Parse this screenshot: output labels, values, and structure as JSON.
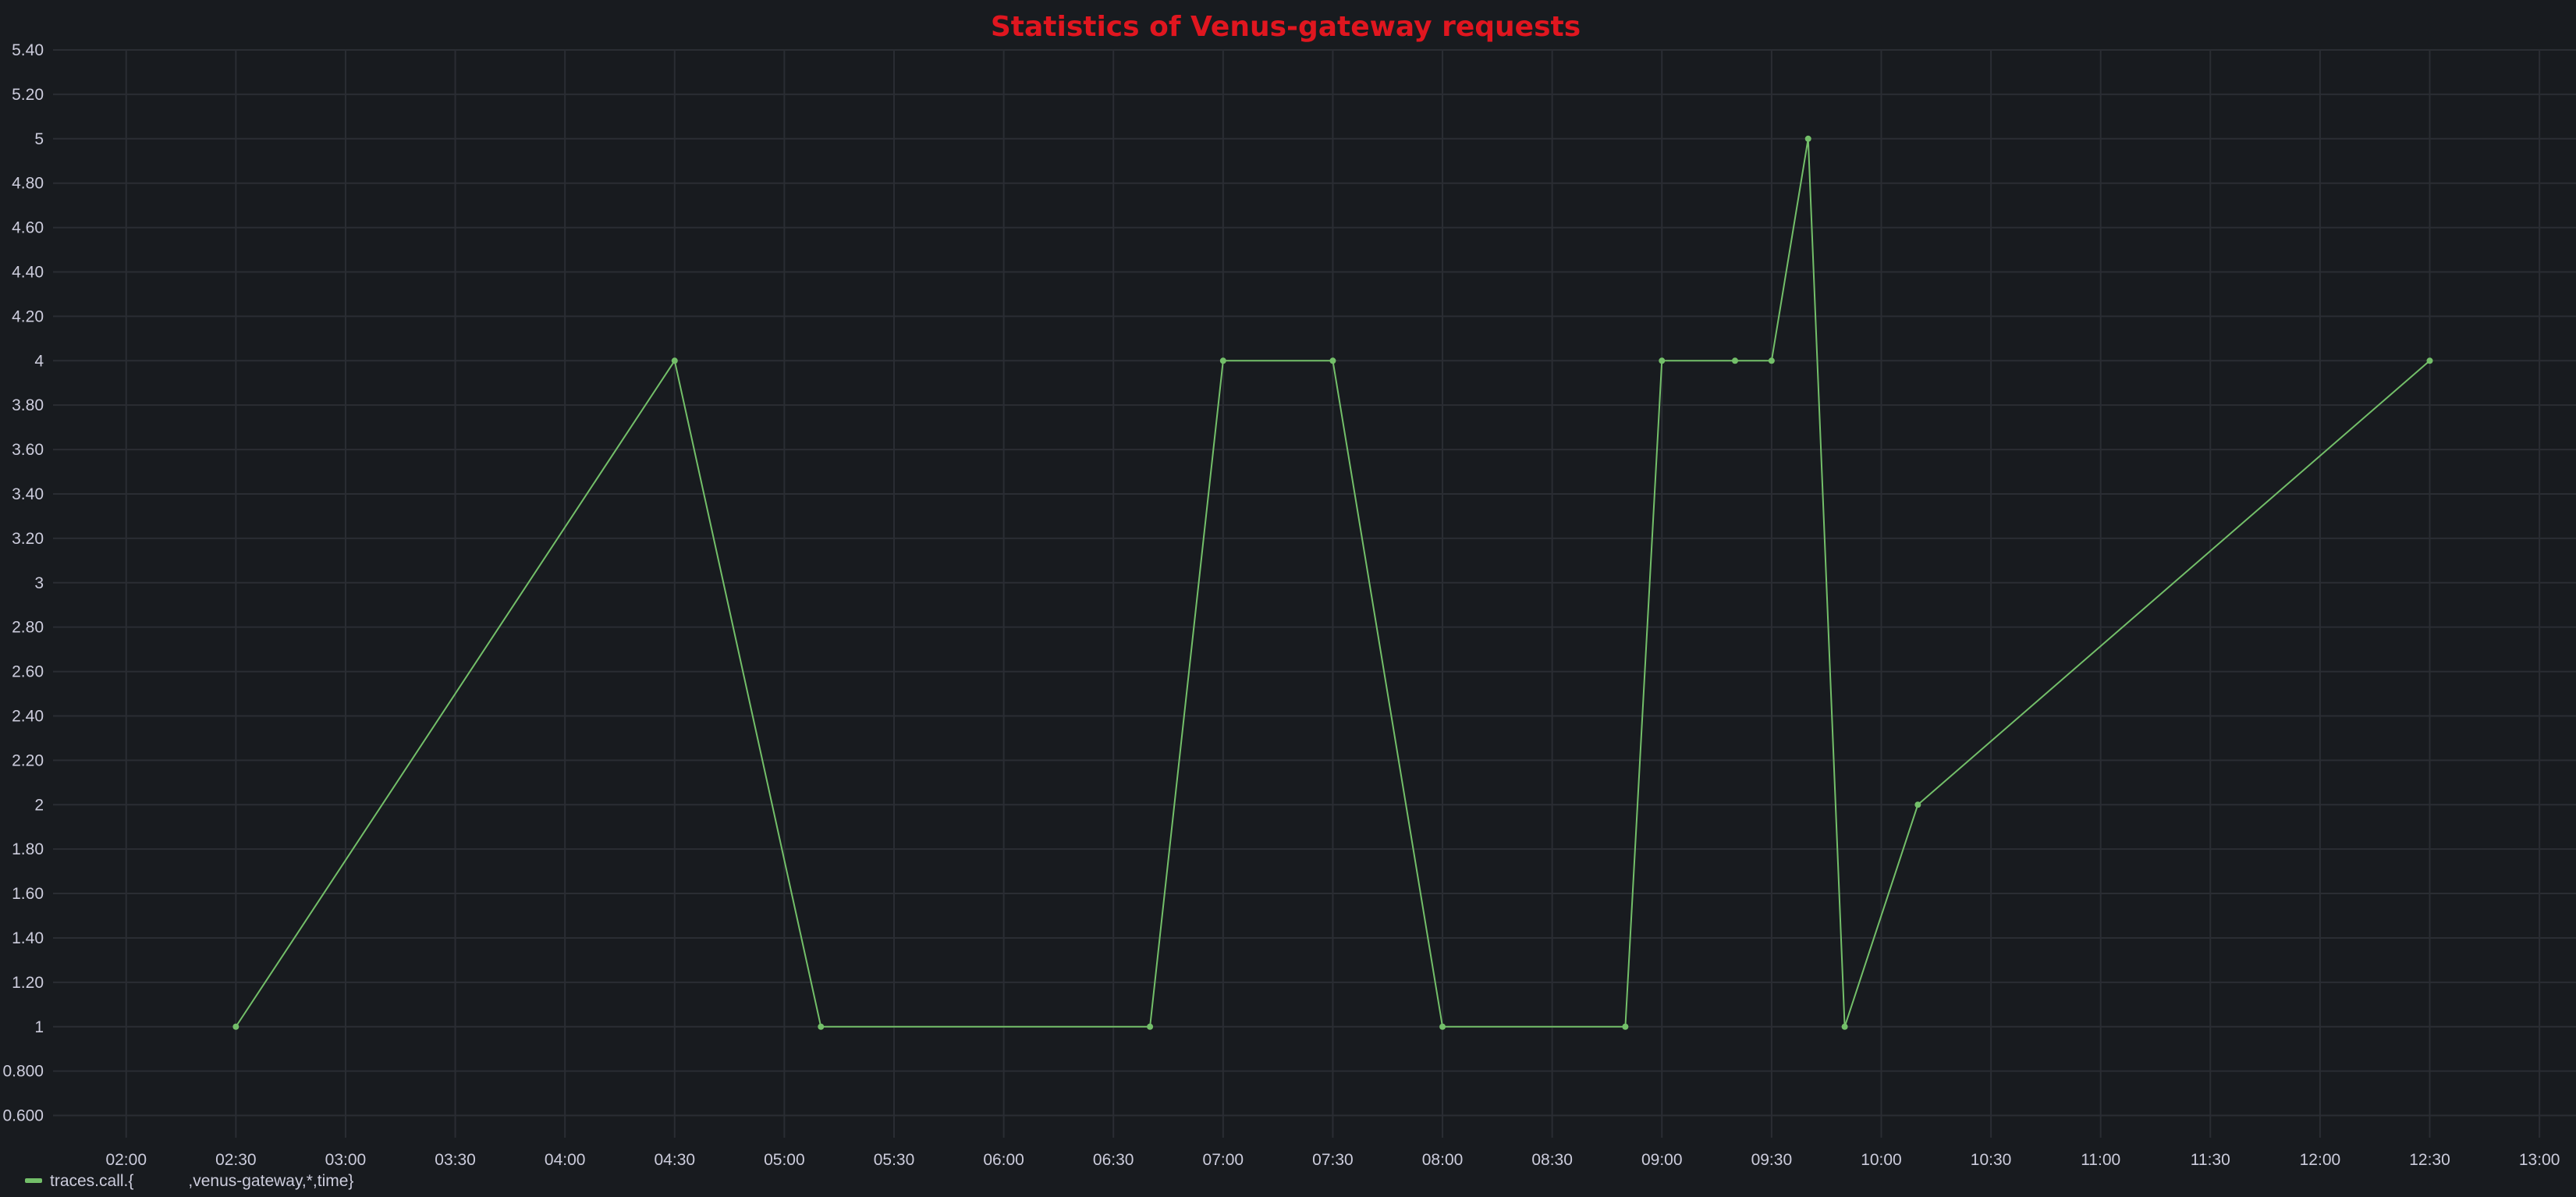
{
  "chart_data": {
    "type": "line",
    "title": "Statistics of Venus-gateway requests",
    "xlabel": "",
    "ylabel": "",
    "x_axis": {
      "type": "time",
      "range": [
        "01:40",
        "13:10"
      ],
      "ticks": [
        "02:00",
        "02:30",
        "03:00",
        "03:30",
        "04:00",
        "04:30",
        "05:00",
        "05:30",
        "06:00",
        "06:30",
        "07:00",
        "07:30",
        "08:00",
        "08:30",
        "09:00",
        "09:30",
        "10:00",
        "10:30",
        "11:00",
        "11:30",
        "12:00",
        "12:30",
        "13:00"
      ]
    },
    "y_axis": {
      "range": [
        0.5,
        5.4
      ],
      "ticks": [
        {
          "value": 0.6,
          "label": "0.600"
        },
        {
          "value": 0.8,
          "label": "0.800"
        },
        {
          "value": 1.0,
          "label": "1"
        },
        {
          "value": 1.2,
          "label": "1.20"
        },
        {
          "value": 1.4,
          "label": "1.40"
        },
        {
          "value": 1.6,
          "label": "1.60"
        },
        {
          "value": 1.8,
          "label": "1.80"
        },
        {
          "value": 2.0,
          "label": "2"
        },
        {
          "value": 2.2,
          "label": "2.20"
        },
        {
          "value": 2.4,
          "label": "2.40"
        },
        {
          "value": 2.6,
          "label": "2.60"
        },
        {
          "value": 2.8,
          "label": "2.80"
        },
        {
          "value": 3.0,
          "label": "3"
        },
        {
          "value": 3.2,
          "label": "3.20"
        },
        {
          "value": 3.4,
          "label": "3.40"
        },
        {
          "value": 3.6,
          "label": "3.60"
        },
        {
          "value": 3.8,
          "label": "3.80"
        },
        {
          "value": 4.0,
          "label": "4"
        },
        {
          "value": 4.2,
          "label": "4.20"
        },
        {
          "value": 4.4,
          "label": "4.40"
        },
        {
          "value": 4.6,
          "label": "4.60"
        },
        {
          "value": 4.8,
          "label": "4.80"
        },
        {
          "value": 5.0,
          "label": "5"
        },
        {
          "value": 5.2,
          "label": "5.20"
        },
        {
          "value": 5.4,
          "label": "5.40"
        }
      ]
    },
    "grid": true,
    "legend_position": "bottom-left",
    "series": [
      {
        "name": "traces.call.{            ,venus-gateway,*,time}",
        "color": "#73bf69",
        "points": [
          {
            "x": "02:30",
            "y": 1
          },
          {
            "x": "04:30",
            "y": 4
          },
          {
            "x": "05:10",
            "y": 1
          },
          {
            "x": "06:40",
            "y": 1
          },
          {
            "x": "07:00",
            "y": 4
          },
          {
            "x": "07:30",
            "y": 4
          },
          {
            "x": "08:00",
            "y": 1
          },
          {
            "x": "08:50",
            "y": 1
          },
          {
            "x": "09:00",
            "y": 4
          },
          {
            "x": "09:20",
            "y": 4
          },
          {
            "x": "09:30",
            "y": 4
          },
          {
            "x": "09:40",
            "y": 5
          },
          {
            "x": "09:50",
            "y": 1
          },
          {
            "x": "10:10",
            "y": 2
          },
          {
            "x": "12:30",
            "y": 4
          }
        ]
      }
    ]
  }
}
